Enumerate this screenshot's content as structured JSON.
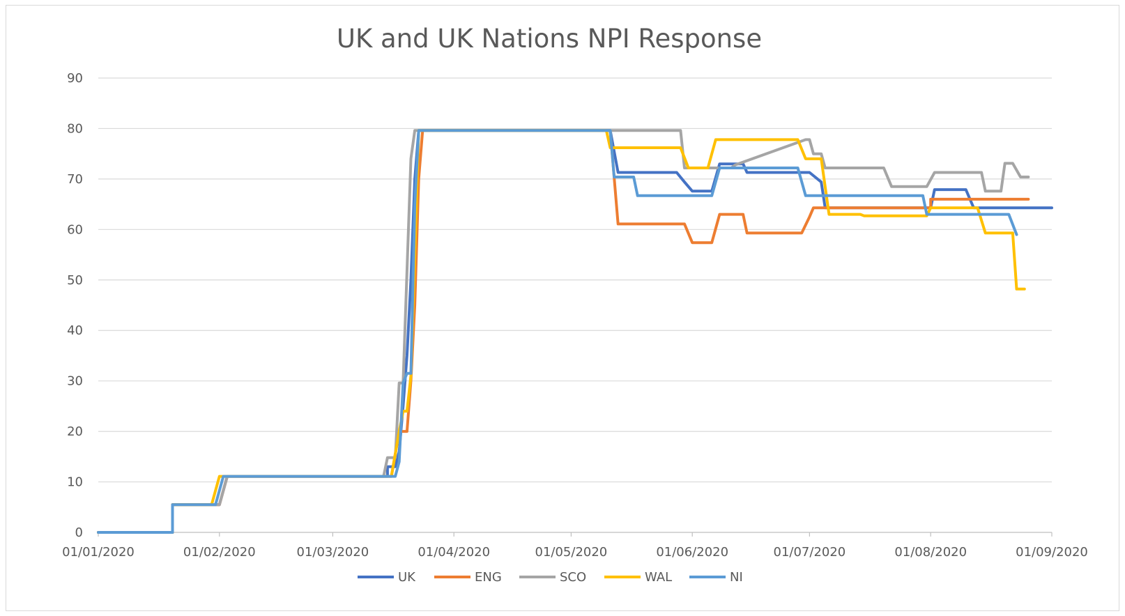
{
  "chart_data": {
    "type": "line",
    "title": "UK and UK Nations NPI Response",
    "xlabel": "",
    "ylabel": "",
    "x_axis": {
      "type": "date",
      "start": "2020-01-01",
      "end": "2020-09-01",
      "ticks": [
        {
          "date": "2020-01-01",
          "label": "01/01/2020"
        },
        {
          "date": "2020-02-01",
          "label": "01/02/2020"
        },
        {
          "date": "2020-03-01",
          "label": "01/03/2020"
        },
        {
          "date": "2020-04-01",
          "label": "01/04/2020"
        },
        {
          "date": "2020-05-01",
          "label": "01/05/2020"
        },
        {
          "date": "2020-06-01",
          "label": "01/06/2020"
        },
        {
          "date": "2020-07-01",
          "label": "01/07/2020"
        },
        {
          "date": "2020-08-01",
          "label": "01/08/2020"
        },
        {
          "date": "2020-09-01",
          "label": "01/09/2020"
        }
      ]
    },
    "ylim": [
      0,
      90
    ],
    "yticks": [
      0,
      10,
      20,
      30,
      40,
      50,
      60,
      70,
      80,
      90
    ],
    "grid": true,
    "legend_position": "bottom",
    "series": [
      {
        "name": "UK",
        "color": "#4472c4",
        "points": [
          [
            "2020-01-01",
            0
          ],
          [
            "2020-01-20",
            0
          ],
          [
            "2020-01-20",
            5.5
          ],
          [
            "2020-02-01",
            5.5
          ],
          [
            "2020-02-03",
            11.1
          ],
          [
            "2020-03-15",
            11.1
          ],
          [
            "2020-03-15",
            13
          ],
          [
            "2020-03-17",
            13
          ],
          [
            "2020-03-18",
            16
          ],
          [
            "2020-03-19",
            25
          ],
          [
            "2020-03-20",
            35
          ],
          [
            "2020-03-21",
            50
          ],
          [
            "2020-03-22",
            70
          ],
          [
            "2020-03-23",
            79.6
          ],
          [
            "2020-05-11",
            79.6
          ],
          [
            "2020-05-13",
            71.3
          ],
          [
            "2020-05-28",
            71.3
          ],
          [
            "2020-05-30",
            69.4
          ],
          [
            "2020-06-01",
            67.6
          ],
          [
            "2020-06-06",
            67.6
          ],
          [
            "2020-06-08",
            73
          ],
          [
            "2020-06-14",
            73
          ],
          [
            "2020-06-15",
            71.3
          ],
          [
            "2020-07-01",
            71.3
          ],
          [
            "2020-07-04",
            69.4
          ],
          [
            "2020-07-05",
            64.3
          ],
          [
            "2020-08-01",
            64.3
          ],
          [
            "2020-08-02",
            67.9
          ],
          [
            "2020-08-10",
            67.9
          ],
          [
            "2020-08-12",
            64.3
          ],
          [
            "2020-09-01",
            64.3
          ]
        ]
      },
      {
        "name": "ENG",
        "color": "#ed7d31",
        "points": [
          [
            "2020-01-01",
            0
          ],
          [
            "2020-01-20",
            0
          ],
          [
            "2020-01-20",
            5.5
          ],
          [
            "2020-02-01",
            5.5
          ],
          [
            "2020-02-03",
            11.1
          ],
          [
            "2020-03-16",
            11.1
          ],
          [
            "2020-03-18",
            20
          ],
          [
            "2020-03-20",
            20
          ],
          [
            "2020-03-21",
            30
          ],
          [
            "2020-03-22",
            45
          ],
          [
            "2020-03-23",
            70
          ],
          [
            "2020-03-24",
            79.6
          ],
          [
            "2020-05-11",
            79.6
          ],
          [
            "2020-05-13",
            61.1
          ],
          [
            "2020-05-30",
            61.1
          ],
          [
            "2020-06-01",
            57.4
          ],
          [
            "2020-06-06",
            57.4
          ],
          [
            "2020-06-08",
            63
          ],
          [
            "2020-06-14",
            63
          ],
          [
            "2020-06-15",
            59.3
          ],
          [
            "2020-06-29",
            59.3
          ],
          [
            "2020-07-01",
            62.5
          ],
          [
            "2020-07-02",
            64.3
          ],
          [
            "2020-08-01",
            64.3
          ],
          [
            "2020-08-01",
            66
          ],
          [
            "2020-08-26",
            66
          ]
        ]
      },
      {
        "name": "SCO",
        "color": "#a5a5a5",
        "points": [
          [
            "2020-01-01",
            0
          ],
          [
            "2020-01-20",
            0
          ],
          [
            "2020-01-20",
            5.5
          ],
          [
            "2020-02-01",
            5.5
          ],
          [
            "2020-02-03",
            11.1
          ],
          [
            "2020-03-14",
            11.1
          ],
          [
            "2020-03-15",
            14.8
          ],
          [
            "2020-03-17",
            14.8
          ],
          [
            "2020-03-18",
            29.6
          ],
          [
            "2020-03-19",
            29.6
          ],
          [
            "2020-03-21",
            74
          ],
          [
            "2020-03-22",
            79.6
          ],
          [
            "2020-05-29",
            79.6
          ],
          [
            "2020-05-30",
            72.2
          ],
          [
            "2020-06-11",
            72.2
          ],
          [
            "2020-06-12",
            72.8
          ],
          [
            "2020-06-30",
            77.8
          ],
          [
            "2020-07-01",
            77.8
          ],
          [
            "2020-07-02",
            75
          ],
          [
            "2020-07-04",
            75
          ],
          [
            "2020-07-05",
            72.2
          ],
          [
            "2020-07-20",
            72.2
          ],
          [
            "2020-07-22",
            68.5
          ],
          [
            "2020-07-31",
            68.5
          ],
          [
            "2020-08-02",
            71.3
          ],
          [
            "2020-08-14",
            71.3
          ],
          [
            "2020-08-15",
            67.6
          ],
          [
            "2020-08-19",
            67.6
          ],
          [
            "2020-08-20",
            73.1
          ],
          [
            "2020-08-22",
            73.1
          ],
          [
            "2020-08-24",
            70.4
          ],
          [
            "2020-08-26",
            70.4
          ]
        ]
      },
      {
        "name": "WAL",
        "color": "#ffc000",
        "points": [
          [
            "2020-01-01",
            0
          ],
          [
            "2020-01-20",
            0
          ],
          [
            "2020-01-20",
            5.5
          ],
          [
            "2020-01-30",
            5.5
          ],
          [
            "2020-02-01",
            11.1
          ],
          [
            "2020-03-16",
            11.1
          ],
          [
            "2020-03-18",
            20
          ],
          [
            "2020-03-19",
            24
          ],
          [
            "2020-03-20",
            24
          ],
          [
            "2020-03-21",
            31
          ],
          [
            "2020-03-22",
            55
          ],
          [
            "2020-03-23",
            79.6
          ],
          [
            "2020-05-10",
            79.6
          ],
          [
            "2020-05-11",
            76.2
          ],
          [
            "2020-05-29",
            76.2
          ],
          [
            "2020-05-31",
            72.2
          ],
          [
            "2020-06-05",
            72.2
          ],
          [
            "2020-06-07",
            77.8
          ],
          [
            "2020-06-28",
            77.8
          ],
          [
            "2020-06-30",
            74
          ],
          [
            "2020-07-04",
            74
          ],
          [
            "2020-07-06",
            63
          ],
          [
            "2020-07-14",
            63
          ],
          [
            "2020-07-15",
            62.7
          ],
          [
            "2020-07-31",
            62.7
          ],
          [
            "2020-08-01",
            64.3
          ],
          [
            "2020-08-13",
            64.3
          ],
          [
            "2020-08-15",
            59.3
          ],
          [
            "2020-08-22",
            59.3
          ],
          [
            "2020-08-23",
            48.2
          ],
          [
            "2020-08-25",
            48.2
          ]
        ]
      },
      {
        "name": "NI",
        "color": "#5b9bd5",
        "points": [
          [
            "2020-01-01",
            0
          ],
          [
            "2020-01-20",
            0
          ],
          [
            "2020-01-20",
            5.5
          ],
          [
            "2020-01-31",
            5.5
          ],
          [
            "2020-02-02",
            11.1
          ],
          [
            "2020-03-17",
            11.1
          ],
          [
            "2020-03-18",
            14
          ],
          [
            "2020-03-19",
            29.6
          ],
          [
            "2020-03-20",
            31.5
          ],
          [
            "2020-03-21",
            31.5
          ],
          [
            "2020-03-22",
            65
          ],
          [
            "2020-03-23",
            79.6
          ],
          [
            "2020-05-11",
            79.6
          ],
          [
            "2020-05-12",
            70.4
          ],
          [
            "2020-05-17",
            70.4
          ],
          [
            "2020-05-18",
            66.7
          ],
          [
            "2020-06-06",
            66.7
          ],
          [
            "2020-06-08",
            72.2
          ],
          [
            "2020-06-28",
            72.2
          ],
          [
            "2020-06-30",
            66.7
          ],
          [
            "2020-07-30",
            66.7
          ],
          [
            "2020-07-31",
            63
          ],
          [
            "2020-08-21",
            63
          ],
          [
            "2020-08-23",
            59
          ]
        ]
      }
    ]
  }
}
